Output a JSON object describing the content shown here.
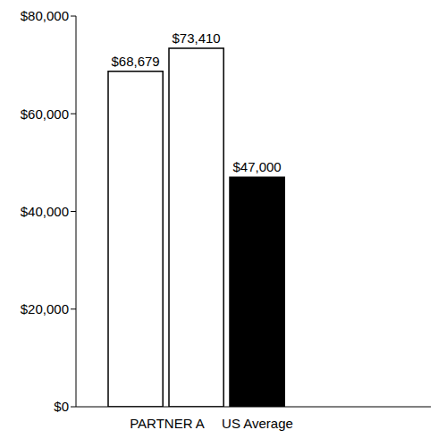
{
  "chart_data": {
    "type": "bar",
    "categories": [
      "PARTNER A",
      null,
      "US Average"
    ],
    "values": [
      68679,
      73410,
      47000
    ],
    "value_labels": [
      "$68,679",
      "$73,410",
      "$47,000"
    ],
    "colors": [
      "#ffffff",
      "#ffffff",
      "#000000"
    ],
    "ylim": [
      0,
      80000
    ],
    "yticks": [
      {
        "value": 0,
        "label": "$0"
      },
      {
        "value": 20000,
        "label": "$20,000"
      },
      {
        "value": 40000,
        "label": "$40,000"
      },
      {
        "value": 60000,
        "label": "$60,000"
      },
      {
        "value": 80000,
        "label": "$80,000"
      }
    ],
    "grid": false,
    "data_labels": true
  }
}
